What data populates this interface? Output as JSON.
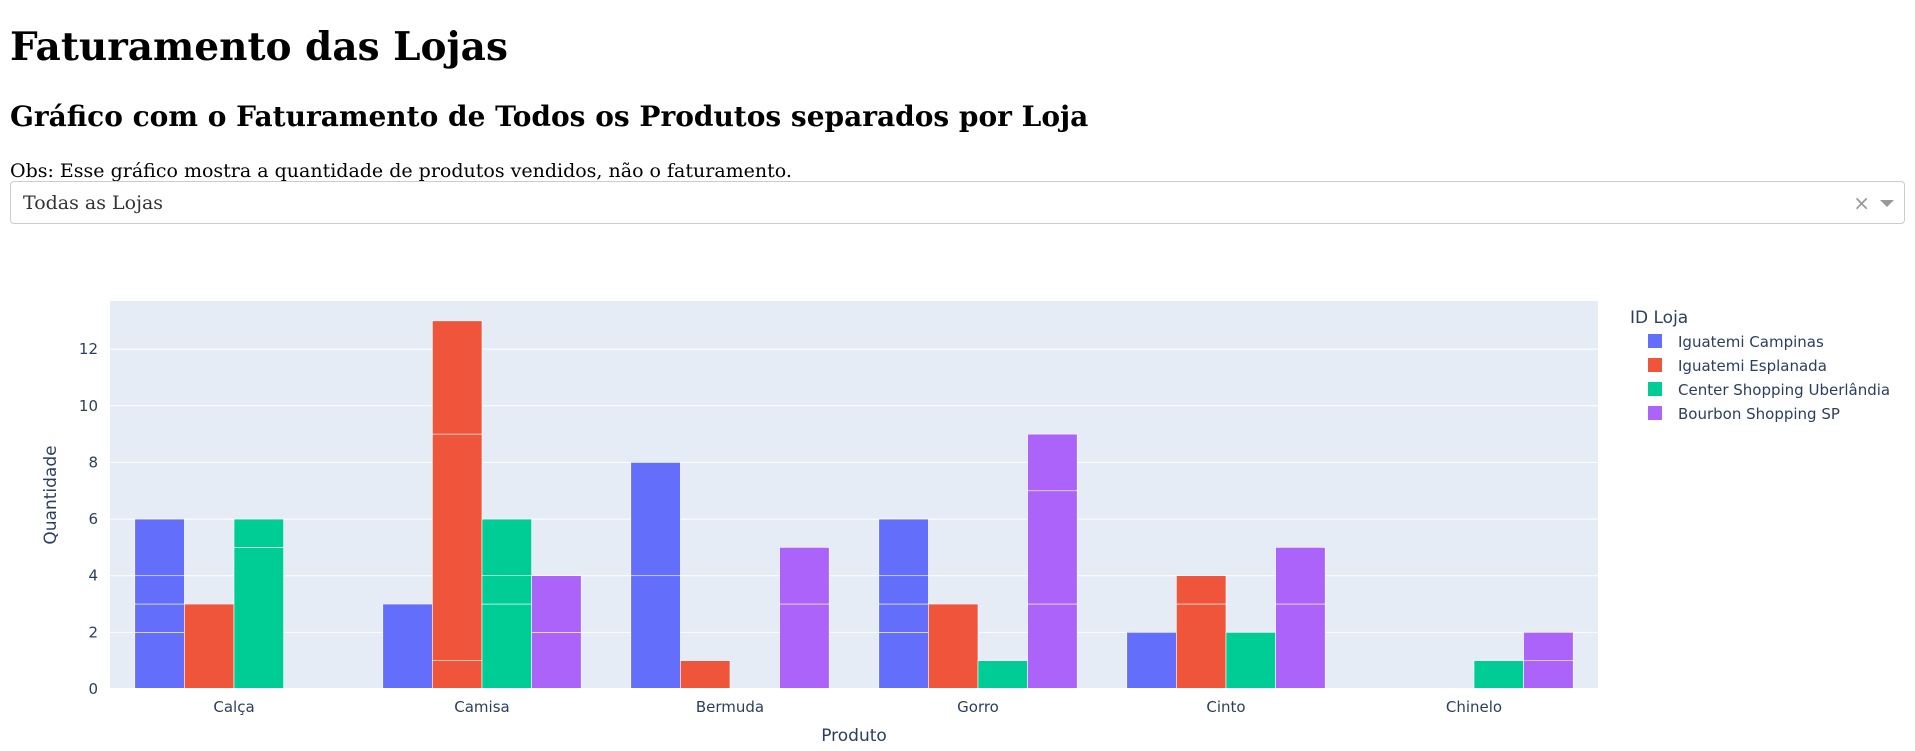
{
  "page": {
    "title": "Faturamento das Lojas",
    "subtitle": "Gráfico com o Faturamento de Todos os Produtos separados por Loja",
    "note": "Obs: Esse gráfico mostra a quantidade de produtos vendidos, não o faturamento."
  },
  "dropdown": {
    "value": "Todas as Lojas",
    "clear_glyph": "×"
  },
  "chart_data": {
    "type": "bar",
    "barmode": "group",
    "xlabel": "Produto",
    "ylabel": "Quantidade",
    "ylim": [
      0,
      13.7
    ],
    "yticks": [
      0,
      2,
      4,
      6,
      8,
      10,
      12
    ],
    "grid": true,
    "plot_bg": "#e5ecf6",
    "legend_title": "ID Loja",
    "legend_position": "right",
    "categories": [
      "Calça",
      "Camisa",
      "Bermuda",
      "Gorro",
      "Cinto",
      "Chinelo"
    ],
    "series": [
      {
        "name": "Iguatemi Campinas",
        "color": "#636efa",
        "values": [
          6,
          3,
          8,
          6,
          2,
          0
        ],
        "segments": [
          [
            2,
            1,
            1,
            2
          ],
          [
            3
          ],
          [
            4,
            4
          ],
          [
            2,
            1,
            1,
            2
          ],
          [
            2
          ],
          []
        ]
      },
      {
        "name": "Iguatemi Esplanada",
        "color": "#ef553b",
        "values": [
          3,
          13,
          1,
          3,
          4,
          0
        ],
        "segments": [
          [
            3
          ],
          [
            1,
            8,
            4
          ],
          [
            1
          ],
          [
            3
          ],
          [
            3,
            1
          ],
          []
        ]
      },
      {
        "name": "Center Shopping Uberlândia",
        "color": "#00cc96",
        "values": [
          6,
          6,
          0,
          1,
          2,
          1
        ],
        "segments": [
          [
            5,
            1
          ],
          [
            3,
            1,
            2
          ],
          [],
          [
            1
          ],
          [
            2
          ],
          [
            1
          ]
        ]
      },
      {
        "name": "Bourbon Shopping SP",
        "color": "#ab63fa",
        "values": [
          0,
          4,
          5,
          9,
          5,
          2
        ],
        "segments": [
          [],
          [
            2,
            2
          ],
          [
            3,
            2
          ],
          [
            3,
            4,
            2
          ],
          [
            3,
            2
          ],
          [
            1,
            1
          ]
        ]
      }
    ]
  }
}
